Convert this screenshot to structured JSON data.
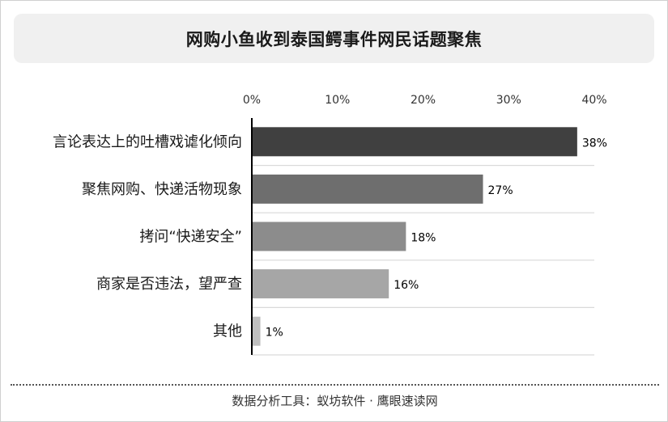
{
  "title": "网购小鱼收到泰国鳄事件网民话题聚焦",
  "source": "数据分析工具：蚁坊软件 · 鹰眼速读网",
  "colors": {
    "bars": [
      "#404040",
      "#6e6e6e",
      "#8c8c8c",
      "#a6a6a6",
      "#bfbfbf"
    ],
    "title_bg": "#f0f0f0",
    "grid": "#d9d9d9",
    "axis": "#000000"
  },
  "chart_data": {
    "type": "bar",
    "orientation": "horizontal",
    "categories": [
      "言论表达上的吐槽戏谑化倾向",
      "聚焦网购、快递活物现象",
      "拷问“快递安全”",
      "商家是否违法，望严查",
      "其他"
    ],
    "values": [
      38,
      27,
      18,
      16,
      1
    ],
    "value_labels": [
      "38%",
      "27%",
      "18%",
      "16%",
      "1%"
    ],
    "x_ticks": [
      0,
      10,
      20,
      30,
      40
    ],
    "x_tick_labels": [
      "0%",
      "10%",
      "20%",
      "30%",
      "40%"
    ],
    "xlim": [
      0,
      40
    ],
    "x_axis_position": "top",
    "grid": true
  }
}
